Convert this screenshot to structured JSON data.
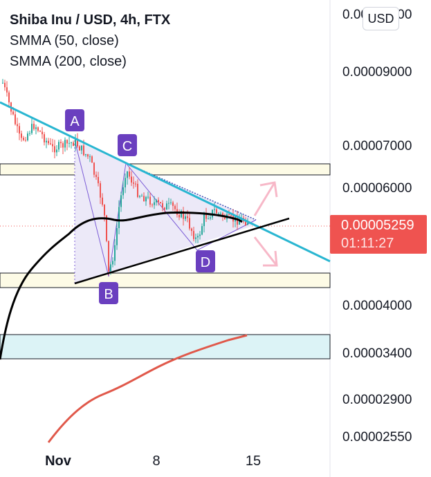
{
  "chart_data": {
    "type": "line",
    "title": "Shiba Inu / USD, 4h, FTX",
    "indicators": [
      "SMMA (50, close)",
      "SMMA (200, close)"
    ],
    "currency": "USD",
    "y_ticks": [
      "0.00010000",
      "0.00009000",
      "0.00007000",
      "0.00006000",
      "0.00004000",
      "0.00003400",
      "0.00002900",
      "0.00002550"
    ],
    "x_ticks": [
      "Nov",
      "8",
      "15"
    ],
    "last_price": "0.00005259",
    "countdown": "01:11:27",
    "points": [
      "A",
      "B",
      "C",
      "D"
    ],
    "series": [
      {
        "name": "SMMA (50, close)",
        "color": "#000000"
      },
      {
        "name": "SMMA (200, close)",
        "color": "#e0584a"
      }
    ],
    "colors": {
      "trendline": "#29b6d1",
      "up": "#26a69a",
      "down": "#ef5350",
      "triangle_fill": "#ece9f8",
      "label_bg": "#6a3fbf",
      "arrow": "#f7b8c8"
    }
  }
}
